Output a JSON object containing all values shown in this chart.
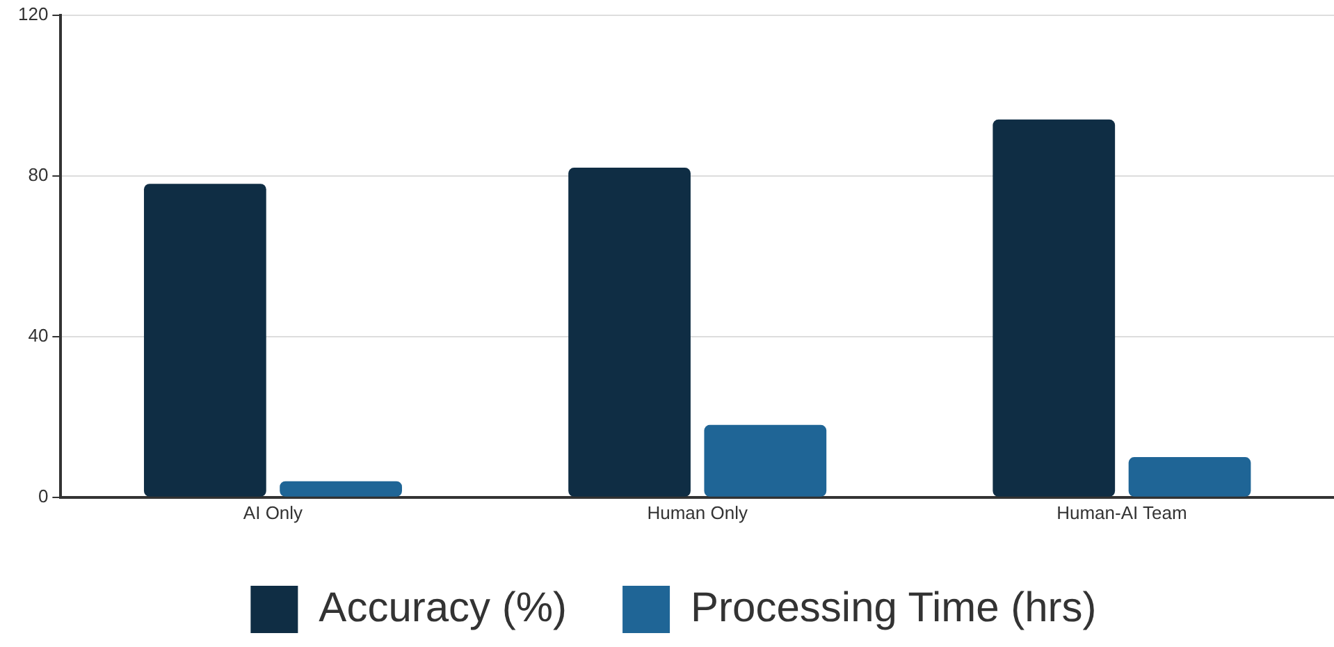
{
  "chart_data": {
    "type": "bar",
    "categories": [
      "AI Only",
      "Human Only",
      "Human-AI Team"
    ],
    "series": [
      {
        "name": "Accuracy (%)",
        "color": "#0f2d44",
        "values": [
          78,
          82,
          94
        ]
      },
      {
        "name": "Processing Time (hrs)",
        "color": "#1f6596",
        "values": [
          4,
          18,
          10
        ]
      }
    ],
    "ylim": [
      0,
      120
    ],
    "yticks": [
      0,
      40,
      80,
      120
    ],
    "grid": "y",
    "legend": "bottom"
  }
}
